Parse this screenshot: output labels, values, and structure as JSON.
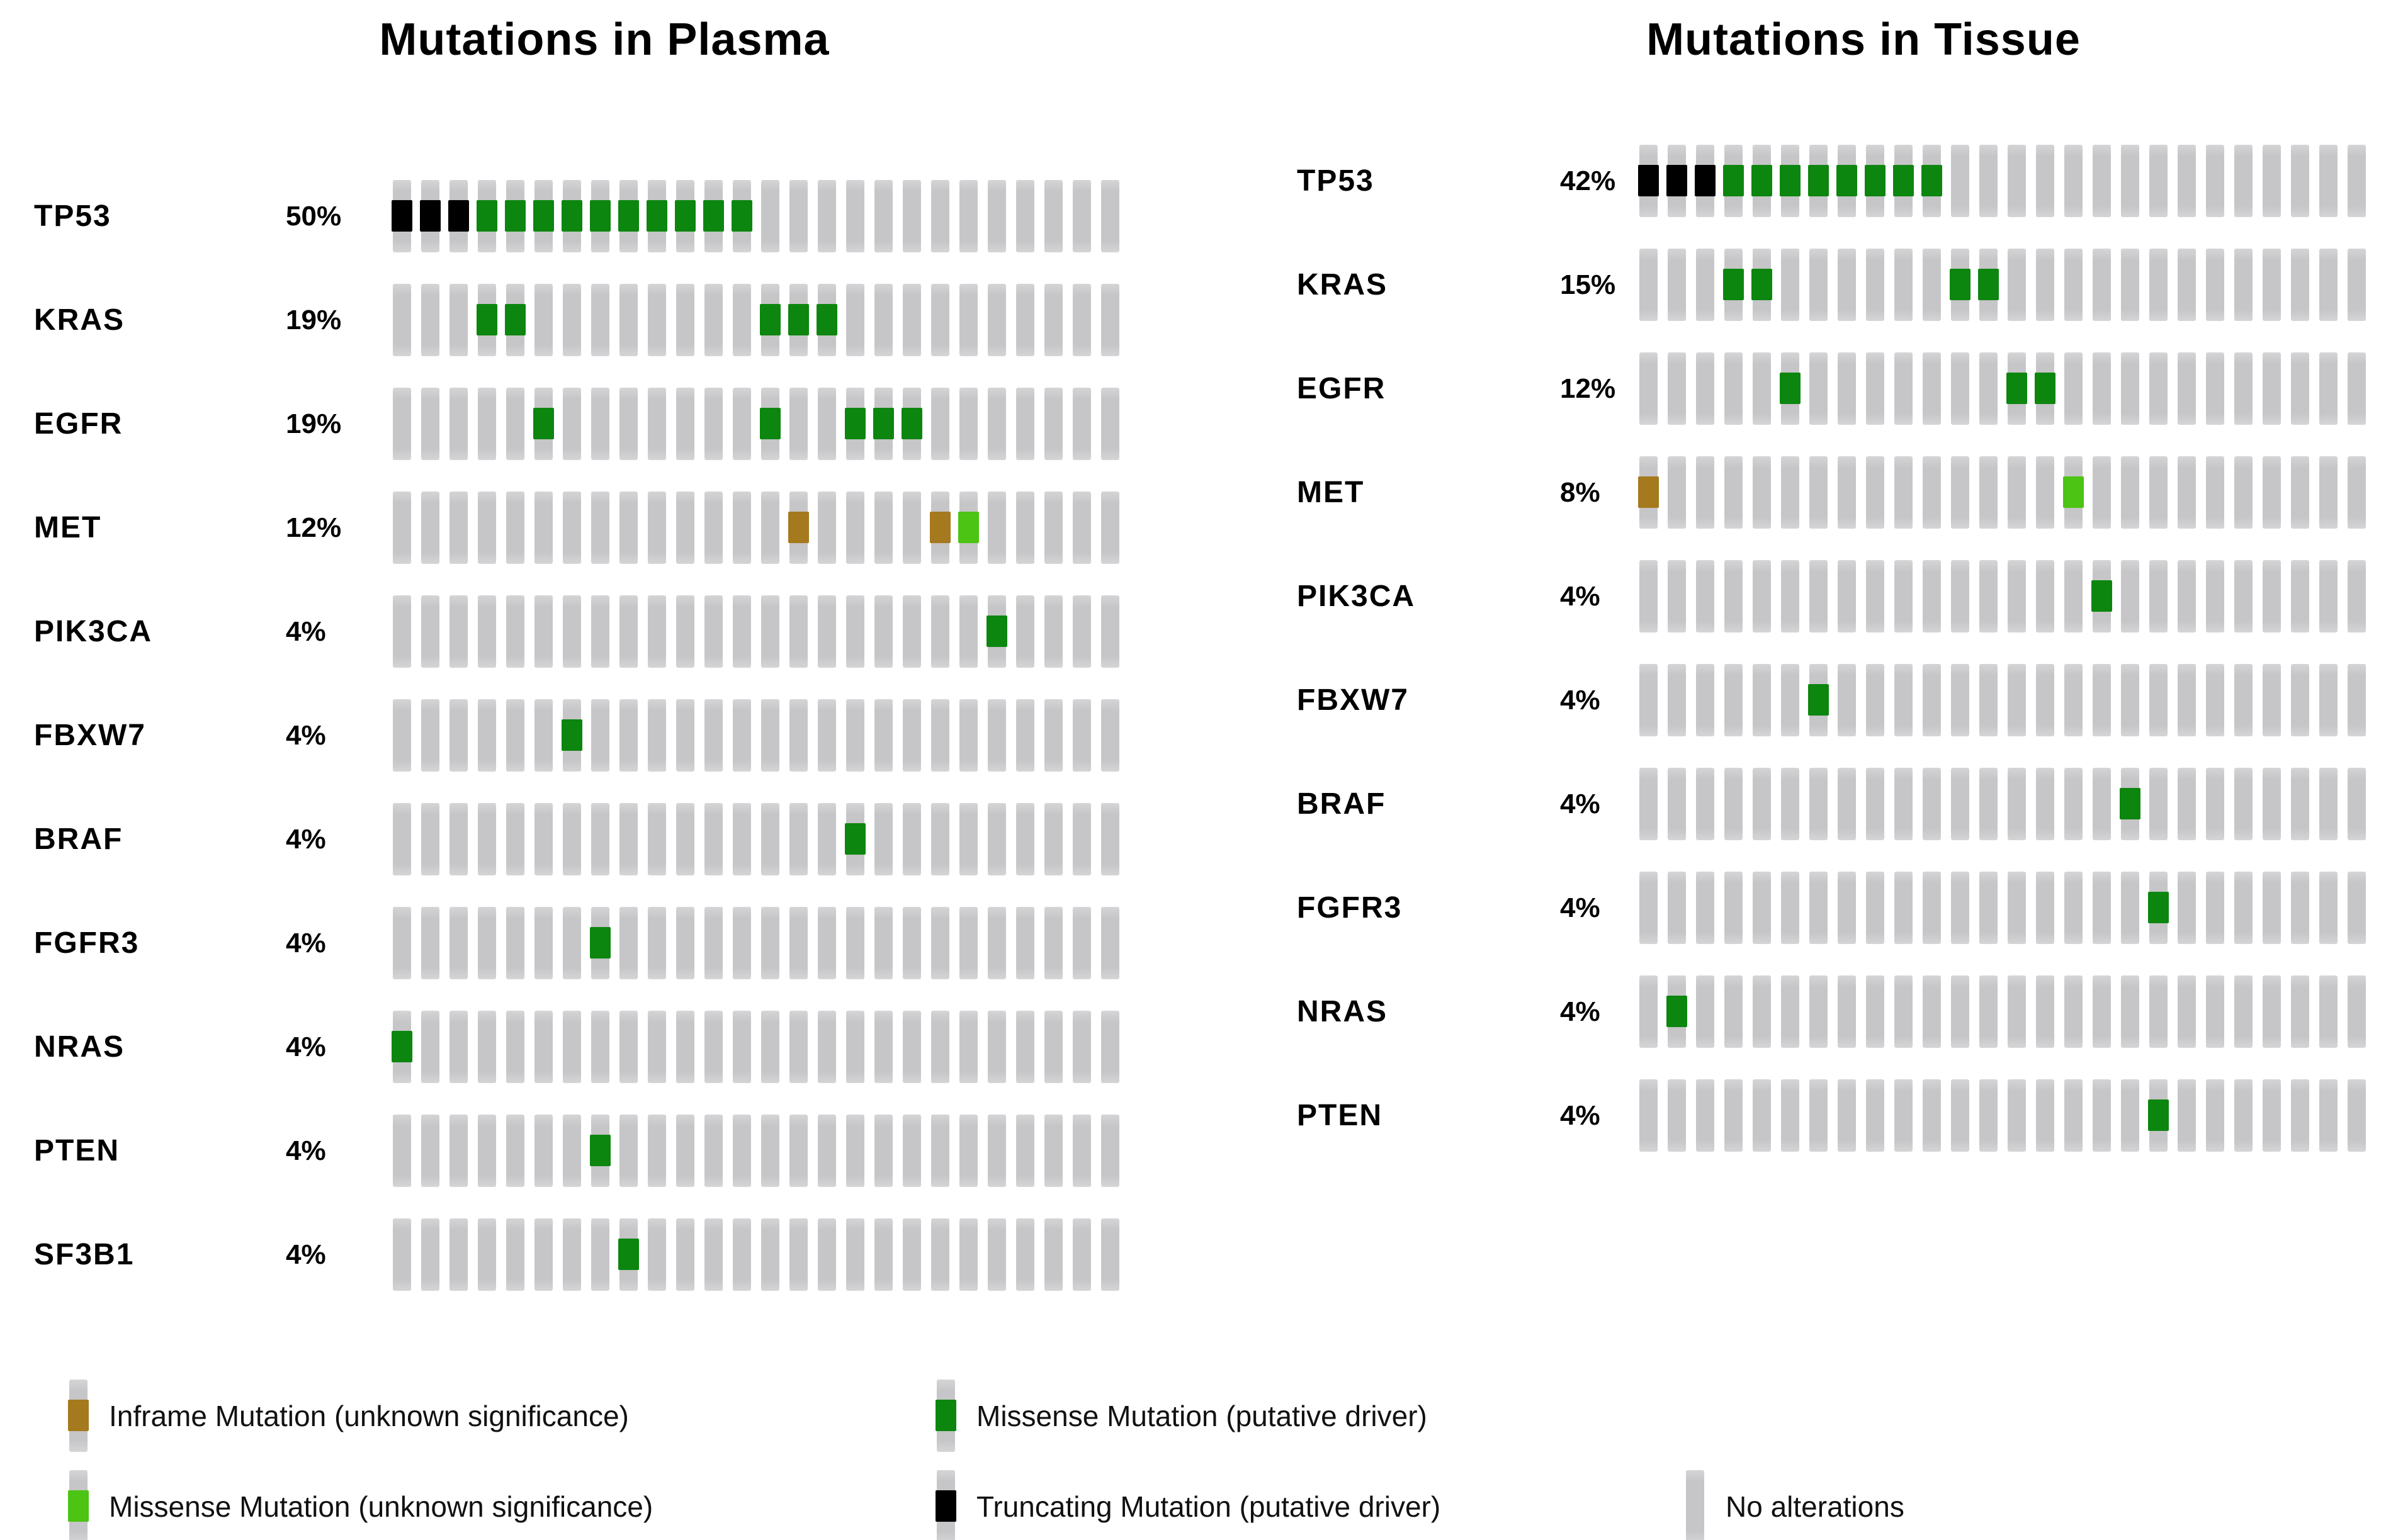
{
  "chart_data": {
    "type": "heatmap",
    "subtype": "oncoprint",
    "n_samples": 26,
    "mutation_types": {
      "driver": {
        "label": "Missense Mutation (putative driver)",
        "color": "#0c860f"
      },
      "truncating": {
        "label": "Truncating Mutation (putative driver)",
        "color": "#000000"
      },
      "inframe": {
        "label": "Inframe Mutation (unknown significance)",
        "color": "#a5791e"
      },
      "missense_unknown": {
        "label": "Missense Mutation (unknown significance)",
        "color": "#4cc413"
      },
      "none": {
        "label": "No alterations",
        "color": "#c6c5c7"
      }
    },
    "panels": [
      {
        "title": "Mutations in Plasma",
        "genes": [
          {
            "gene": "TP53",
            "frequency": "50%",
            "alterations": {
              "truncating": [
                1,
                2,
                3
              ],
              "driver": [
                4,
                5,
                6,
                7,
                8,
                9,
                10,
                11,
                12,
                13
              ]
            }
          },
          {
            "gene": "KRAS",
            "frequency": "19%",
            "alterations": {
              "driver": [
                4,
                5,
                14,
                15,
                16
              ]
            }
          },
          {
            "gene": "EGFR",
            "frequency": "19%",
            "alterations": {
              "driver": [
                6,
                14,
                17,
                18,
                19
              ]
            }
          },
          {
            "gene": "MET",
            "frequency": "12%",
            "alterations": {
              "inframe": [
                15,
                20
              ],
              "missense_unknown": [
                21
              ]
            }
          },
          {
            "gene": "PIK3CA",
            "frequency": "4%",
            "alterations": {
              "driver": [
                22
              ]
            }
          },
          {
            "gene": "FBXW7",
            "frequency": "4%",
            "alterations": {
              "driver": [
                7
              ]
            }
          },
          {
            "gene": "BRAF",
            "frequency": "4%",
            "alterations": {
              "driver": [
                17
              ]
            }
          },
          {
            "gene": "FGFR3",
            "frequency": "4%",
            "alterations": {
              "driver": [
                8
              ]
            }
          },
          {
            "gene": "NRAS",
            "frequency": "4%",
            "alterations": {
              "driver": [
                1
              ]
            }
          },
          {
            "gene": "PTEN",
            "frequency": "4%",
            "alterations": {
              "driver": [
                8
              ]
            }
          },
          {
            "gene": "SF3B1",
            "frequency": "4%",
            "alterations": {
              "driver": [
                9
              ]
            }
          }
        ]
      },
      {
        "title": "Mutations in Tissue",
        "genes": [
          {
            "gene": "TP53",
            "frequency": "42%",
            "alterations": {
              "truncating": [
                1,
                2,
                3
              ],
              "driver": [
                4,
                5,
                6,
                7,
                8,
                9,
                10,
                11
              ]
            }
          },
          {
            "gene": "KRAS",
            "frequency": "15%",
            "alterations": {
              "driver": [
                4,
                5,
                12,
                13
              ]
            }
          },
          {
            "gene": "EGFR",
            "frequency": "12%",
            "alterations": {
              "driver": [
                6,
                14,
                15
              ]
            }
          },
          {
            "gene": "MET",
            "frequency": "8%",
            "alterations": {
              "inframe": [
                1
              ],
              "missense_unknown": [
                16
              ]
            }
          },
          {
            "gene": "PIK3CA",
            "frequency": "4%",
            "alterations": {
              "driver": [
                17
              ]
            }
          },
          {
            "gene": "FBXW7",
            "frequency": "4%",
            "alterations": {
              "driver": [
                7
              ]
            }
          },
          {
            "gene": "BRAF",
            "frequency": "4%",
            "alterations": {
              "driver": [
                18
              ]
            }
          },
          {
            "gene": "FGFR3",
            "frequency": "4%",
            "alterations": {
              "driver": [
                19
              ]
            }
          },
          {
            "gene": "NRAS",
            "frequency": "4%",
            "alterations": {
              "driver": [
                2
              ]
            }
          },
          {
            "gene": "PTEN",
            "frequency": "4%",
            "alterations": {
              "driver": [
                19
              ]
            }
          }
        ]
      }
    ],
    "legend": {
      "rows": [
        [
          {
            "type": "inframe",
            "label": "Inframe Mutation (unknown significance)"
          },
          {
            "type": "driver",
            "label": "Missense Mutation (putative driver)"
          }
        ],
        [
          {
            "type": "missense_unknown",
            "label": "Missense Mutation (unknown significance)"
          },
          {
            "type": "truncating",
            "label": "Truncating Mutation (putative driver)"
          },
          {
            "type": "none",
            "label": "No alterations"
          }
        ]
      ]
    }
  }
}
